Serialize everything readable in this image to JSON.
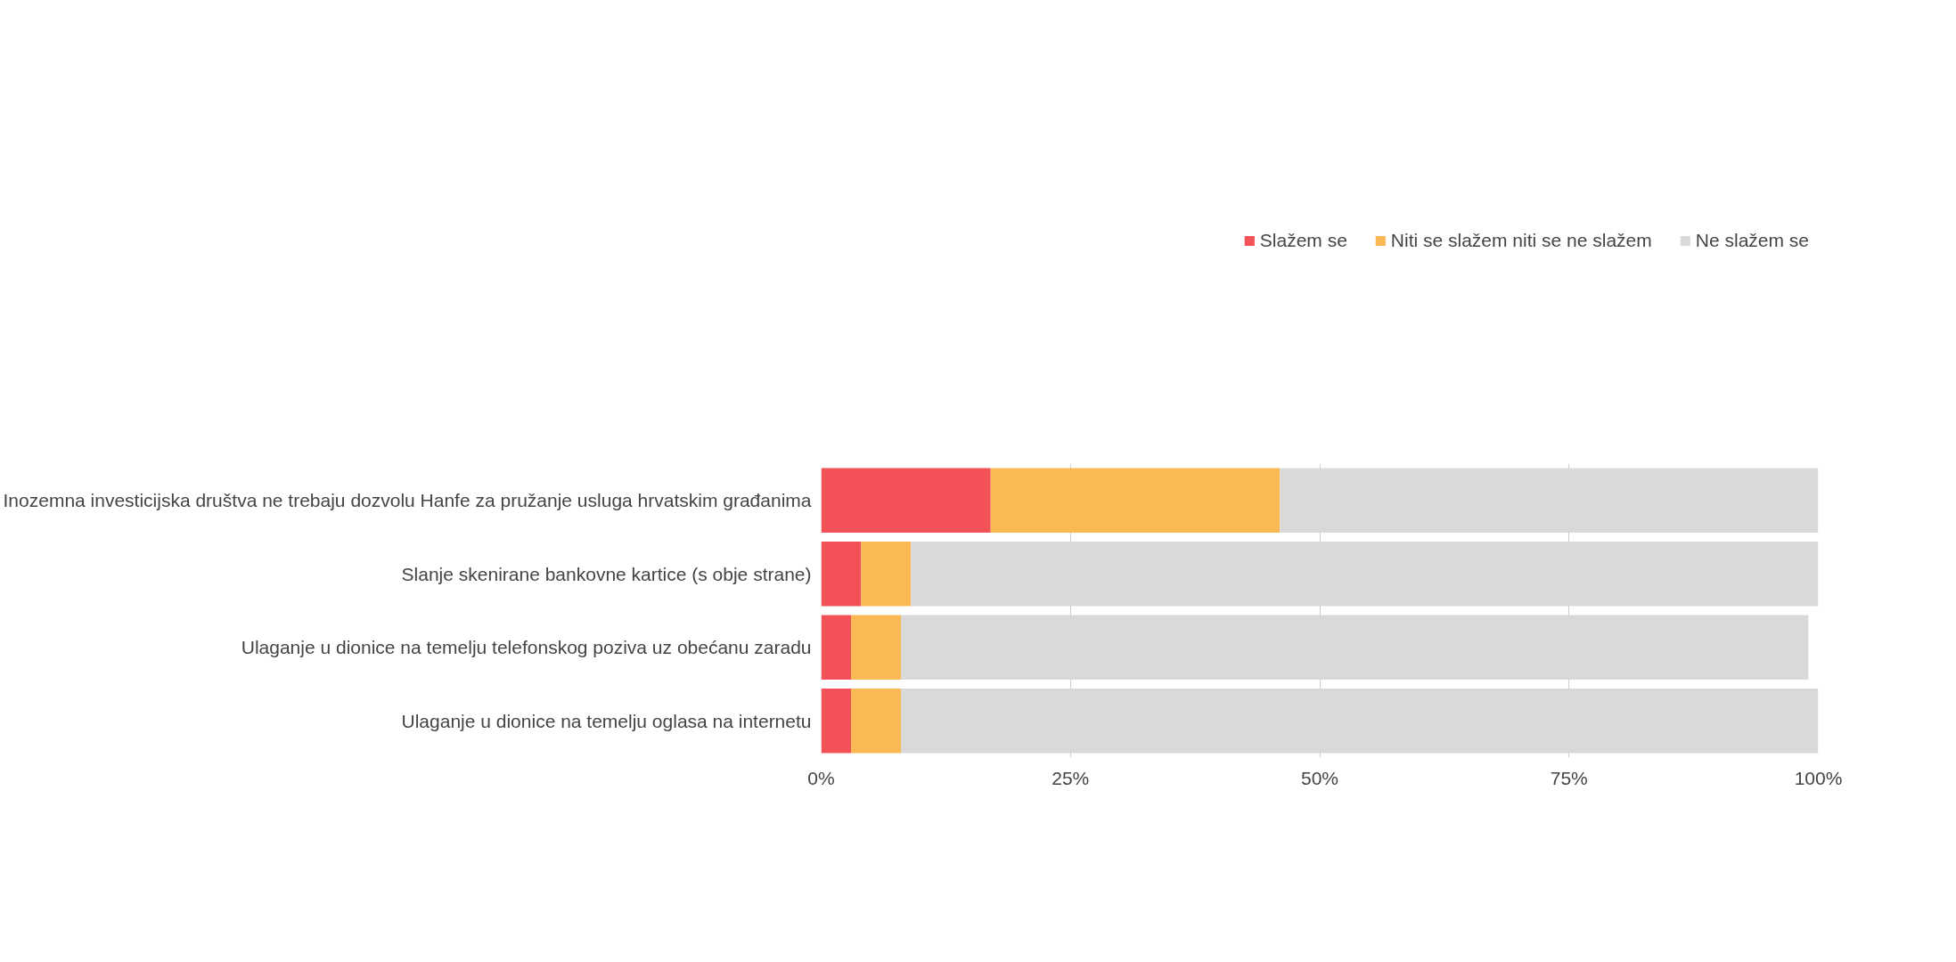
{
  "chart_data": {
    "type": "bar",
    "orientation": "horizontal",
    "stacked": true,
    "categories": [
      "Inozemna investicijska društva ne trebaju dozvolu Hanfe za pružanje usluga hrvatskim građanima",
      "Slanje skenirane bankovne kartice (s obje strane)",
      "Ulaganje u dionice na temelju telefonskog poziva uz obećanu zaradu",
      "Ulaganje u dionice na temelju oglasa na internetu"
    ],
    "series": [
      {
        "name": "Slažem se",
        "color": "#f25257",
        "values": [
          17,
          4,
          3,
          3
        ]
      },
      {
        "name": "Niti se slažem niti se ne slažem",
        "color": "#fbb955",
        "values": [
          29,
          5,
          5,
          5
        ]
      },
      {
        "name": "Ne slažem se",
        "color": "#d9d9d9",
        "values": [
          54,
          91,
          91,
          92
        ]
      }
    ],
    "xlim": [
      0,
      100
    ],
    "xticks": [
      {
        "value": 0,
        "label": "0%"
      },
      {
        "value": 25,
        "label": "25%"
      },
      {
        "value": 50,
        "label": "50%"
      },
      {
        "value": 75,
        "label": "75%"
      },
      {
        "value": 100,
        "label": "100%"
      }
    ],
    "grid": "x",
    "legend": "top right"
  }
}
